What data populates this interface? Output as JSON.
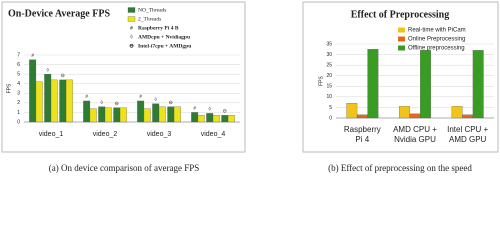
{
  "chart_data": [
    {
      "type": "grouped-pair-bar",
      "title": "On-Device Average FPS",
      "y_label": "FPS",
      "caption": "(a) On device comparison of average FPS",
      "categories": [
        "video_1",
        "video_2",
        "video_3",
        "video_4"
      ],
      "devices": [
        {
          "marker": "#",
          "name": "Raspberry Pi 4 B"
        },
        {
          "marker": "◊",
          "name": "AMDcpu + Nvidiagpu"
        },
        {
          "marker": "⊖",
          "name": "Intel-i7cpu + AMDgpu"
        }
      ],
      "series": [
        {
          "name": "NO_Threads",
          "color": "#2e7d32",
          "values": [
            [
              6.5,
              5.0,
              4.4
            ],
            [
              2.2,
              1.6,
              1.5
            ],
            [
              2.2,
              1.9,
              1.6
            ],
            [
              1.0,
              0.9,
              0.7
            ]
          ]
        },
        {
          "name": "2_Threads",
          "color": "#eee21a",
          "values": [
            [
              4.2,
              4.4,
              4.4
            ],
            [
              1.4,
              1.5,
              1.5
            ],
            [
              1.4,
              1.6,
              1.6
            ],
            [
              0.7,
              0.7,
              0.7
            ]
          ]
        }
      ],
      "ylim": [
        0,
        7
      ],
      "yticks": [
        0,
        1,
        2,
        3,
        4,
        5,
        6,
        7
      ],
      "grid": true
    },
    {
      "type": "bar",
      "title": "Effect of Preprocessing",
      "y_label": "FPS",
      "caption": "(b) Effect of preprocessing on the speed",
      "categories": [
        [
          "Raspberry",
          "Pi 4"
        ],
        [
          "AMD CPU +",
          "Nvidia GPU"
        ],
        [
          "Intel CPU +",
          "AMD GPU"
        ]
      ],
      "series": [
        {
          "name": "Real-time with PiCam",
          "color": "#f2c318",
          "values": [
            7,
            5.5,
            5.5
          ]
        },
        {
          "name": "Online Preprocessing",
          "color": "#e8661a",
          "values": [
            1.5,
            2,
            1.5
          ]
        },
        {
          "name": "Offline preprocessing",
          "color": "#3a9d23",
          "values": [
            32.5,
            32,
            32
          ]
        }
      ],
      "ylim": [
        0,
        35
      ],
      "yticks": [
        0,
        5,
        10,
        15,
        20,
        25,
        30,
        35
      ],
      "grid": true
    }
  ]
}
